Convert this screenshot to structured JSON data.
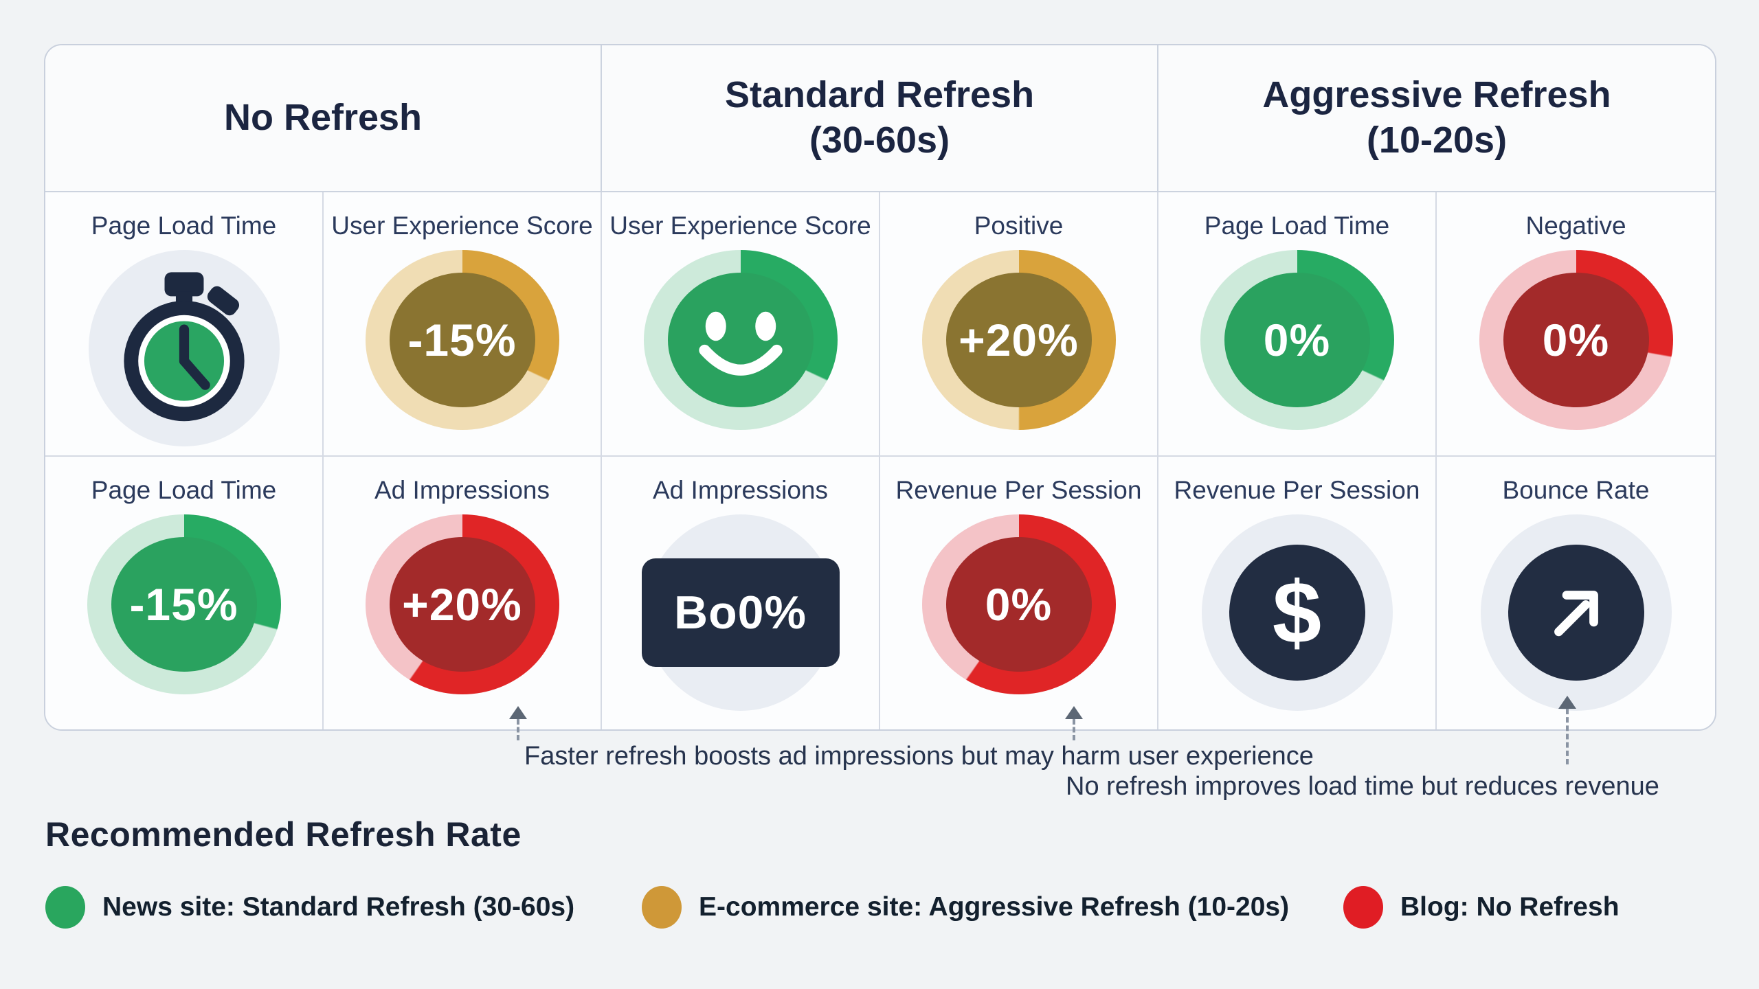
{
  "table": {
    "headers": [
      {
        "lines": [
          "No Refresh"
        ]
      },
      {
        "lines": [
          "Standard Refresh",
          "(30-60s)"
        ]
      },
      {
        "lines": [
          "Aggressive Refresh",
          "(10-20s)"
        ]
      }
    ],
    "rows": [
      [
        {
          "label": "Page Load Time",
          "kind": "stopwatch",
          "icon": "stopwatch-icon"
        },
        {
          "label": "User Experience Score",
          "kind": "gauge",
          "value": "-15%",
          "palette": "gold",
          "sweep": 115
        },
        {
          "label": "User Experience Score",
          "kind": "smiley",
          "palette": "green",
          "sweep": 115,
          "icon": "smiley-face-icon"
        },
        {
          "label": "Positive",
          "kind": "gauge",
          "value": "+20%",
          "palette": "gold",
          "sweep": 180
        },
        {
          "label": "Page Load Time",
          "kind": "gauge",
          "value": "0%",
          "palette": "green",
          "sweep": 115
        },
        {
          "label": "Negative",
          "kind": "gauge",
          "value": "0%",
          "palette": "red",
          "sweep": 100
        }
      ],
      [
        {
          "label": "Page Load Time",
          "kind": "gauge",
          "value": "-15%",
          "palette": "green",
          "sweep": 105
        },
        {
          "label": "Ad Impressions",
          "kind": "gauge",
          "value": "+20%",
          "palette": "red",
          "sweep": 215
        },
        {
          "label": "Ad Impressions",
          "kind": "badge",
          "value": "Bo0%"
        },
        {
          "label": "Revenue Per Session",
          "kind": "gauge",
          "value": "0%",
          "palette": "red",
          "sweep": 215
        },
        {
          "label": "Revenue Per Session",
          "kind": "icon-circle",
          "icon": "dollar-icon",
          "glyph": "$"
        },
        {
          "label": "Bounce Rate",
          "kind": "icon-circle",
          "icon": "arrow-up-right-icon",
          "glyph": "arrow"
        }
      ]
    ]
  },
  "annotations": [
    {
      "text": "Faster refresh boosts ad impressions but may harm user experience"
    },
    {
      "text": "No refresh improves load time but reduces revenue"
    }
  ],
  "legend": {
    "title": "Recommended Refresh Rate",
    "items": [
      {
        "label": "News site: Standard Refresh (30-60s)",
        "color": "#29a65e"
      },
      {
        "label": "E-commerce site: Aggressive Refresh (10-20s)",
        "color": "#cf9838"
      },
      {
        "label": "Blog: No Refresh",
        "color": "#e01d24"
      }
    ]
  },
  "palettes": {
    "gold": {
      "arc": "#d9a33c",
      "ring": "#f0ddb4",
      "center": "#8a7431"
    },
    "green": {
      "arc": "#27ab63",
      "ring": "#cdeada",
      "center": "#2aa25f"
    },
    "red": {
      "arc": "#e02526",
      "ring": "#f4c3c7",
      "center": "#a32a2a"
    }
  },
  "connector_color": "#5c6775"
}
